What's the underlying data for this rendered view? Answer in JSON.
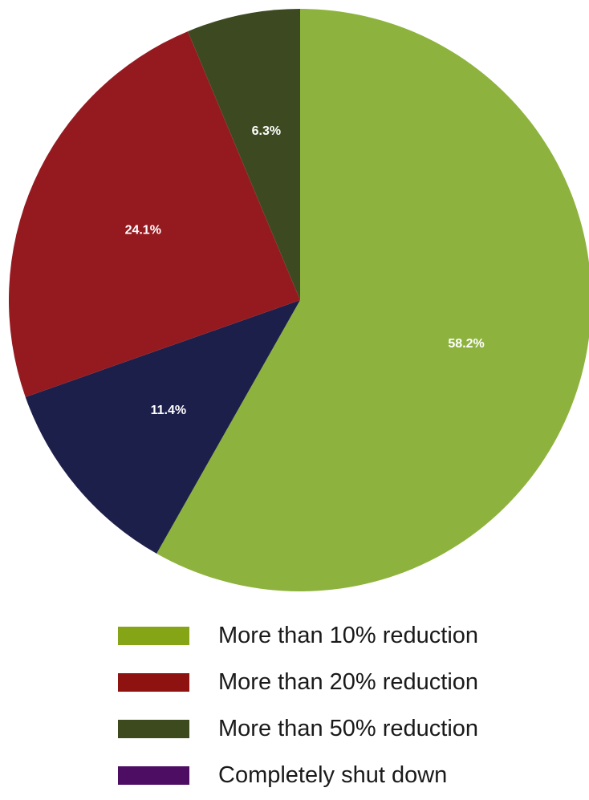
{
  "chart_data": {
    "type": "pie",
    "title": "",
    "slices": [
      {
        "label": "More than 10% reduction",
        "value": 58.2,
        "display": "58.2%",
        "color": "#8db33e"
      },
      {
        "label": "",
        "value": 11.4,
        "display": "11.4%",
        "color": "#1c1f4a"
      },
      {
        "label": "More than 20% reduction",
        "value": 24.1,
        "display": "24.1%",
        "color": "#951a20"
      },
      {
        "label": "More than 50% reduction",
        "value": 6.3,
        "display": "6.3%",
        "color": "#3d4a21"
      }
    ],
    "legend": [
      {
        "label": "More than 10% reduction",
        "color": "#85a516"
      },
      {
        "label": "More than 20% reduction",
        "color": "#8e1210"
      },
      {
        "label": "More than 50% reduction",
        "color": "#3c4a1e"
      },
      {
        "label": "Completely shut down",
        "color": "#4c0d62"
      }
    ],
    "legend_position": "bottom"
  }
}
